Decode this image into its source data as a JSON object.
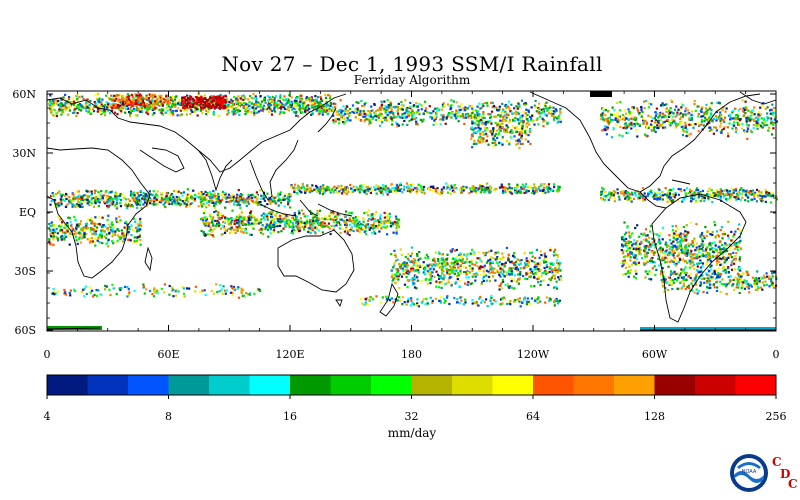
{
  "title": "Nov 27 – Dec 1, 1993 SSM/I Rainfall",
  "subtitle": "Ferriday Algorithm",
  "lat_labels": [
    "60N",
    "30N",
    "EQ",
    "30S",
    "60S"
  ],
  "lon_labels": [
    "0",
    "60E",
    "120E",
    "180",
    "120W",
    "60W",
    "0"
  ],
  "colorbar": {
    "colors": [
      "#001a80",
      "#0033bb",
      "#0055ff",
      "#00999a",
      "#00cccc",
      "#00ffff",
      "#009900",
      "#00cc00",
      "#00ff00",
      "#b3b300",
      "#dddd00",
      "#ffff00",
      "#ff5500",
      "#ff7700",
      "#ffa000",
      "#990000",
      "#cc0000",
      "#ff0000"
    ],
    "tick_labels": [
      "4",
      "8",
      "16",
      "32",
      "64",
      "128",
      "256"
    ],
    "units": "mm/day"
  },
  "logo": {
    "name": "noaa-logo",
    "letters": [
      "C",
      "D",
      "C"
    ]
  }
}
